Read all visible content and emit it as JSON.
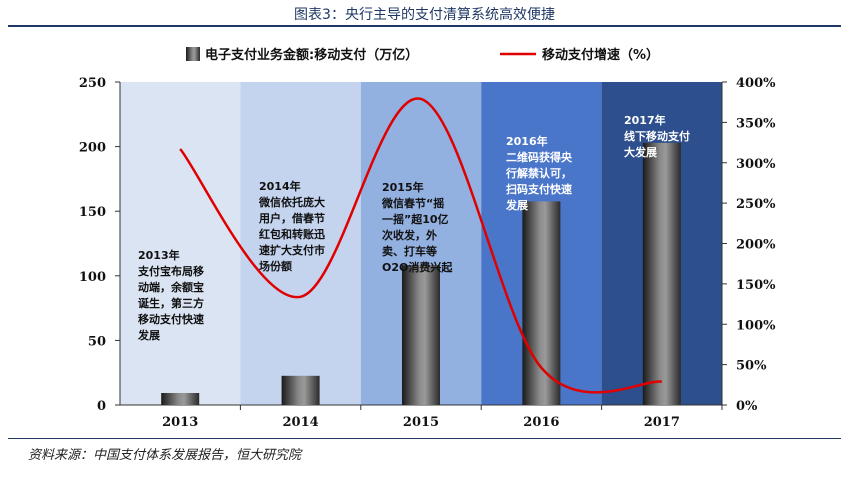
{
  "header": {
    "title": "图表3：央行主导的支付清算系统高效便捷"
  },
  "footer": {
    "source": "资料来源：中国支付体系发展报告，恒大研究院"
  },
  "chart_data": {
    "type": "bar",
    "categories": [
      "2013",
      "2014",
      "2015",
      "2016",
      "2017"
    ],
    "series": [
      {
        "name": "电子支付业务金额:移动支付（万亿）",
        "type": "bar",
        "axis": "left",
        "values": [
          9.3,
          22.6,
          108.2,
          157.6,
          202.9
        ],
        "color": "#4a4a4a"
      },
      {
        "name": "移动支付增速（%）",
        "type": "line",
        "axis": "right",
        "values": [
          317,
          134,
          379,
          46,
          29
        ],
        "color": "#e00000"
      }
    ],
    "y_left": {
      "ylim": [
        0,
        250
      ],
      "ticks": [
        "0",
        "50",
        "100",
        "150",
        "200",
        "250"
      ]
    },
    "y_right": {
      "ylim": [
        0,
        400
      ],
      "ticks": [
        "0%",
        "50%",
        "100%",
        "150%",
        "200%",
        "250%",
        "300%",
        "350%",
        "400%"
      ]
    },
    "band_colors": [
      "#dbe4f3",
      "#c4d4ee",
      "#92b0e0",
      "#4a76c9",
      "#2d4f8e"
    ],
    "annotations": [
      {
        "category": "2013",
        "color": "#111111",
        "lines": [
          "2013年",
          "支付宝布局移",
          "动端，余额宝",
          "诞生，第三方",
          "移动支付快速",
          "发展"
        ]
      },
      {
        "category": "2014",
        "color": "#111111",
        "lines": [
          "2014年",
          "微信依托庞大",
          "用户，借春节",
          "红包和转账迅",
          "速扩大支付市",
          "场份额"
        ]
      },
      {
        "category": "2015",
        "color": "#111111",
        "lines": [
          "2015年",
          "微信春节“摇",
          "一摇”超10亿",
          "次收发，外",
          "卖、打车等",
          "O2O消费兴起"
        ]
      },
      {
        "category": "2016",
        "color": "#ffffff",
        "lines": [
          "2016年",
          "二维码获得央",
          "行解禁认可，",
          "扫码支付快速",
          "发展"
        ]
      },
      {
        "category": "2017",
        "color": "#ffffff",
        "lines": [
          "2017年",
          "线下移动支付",
          "大发展"
        ]
      }
    ]
  }
}
